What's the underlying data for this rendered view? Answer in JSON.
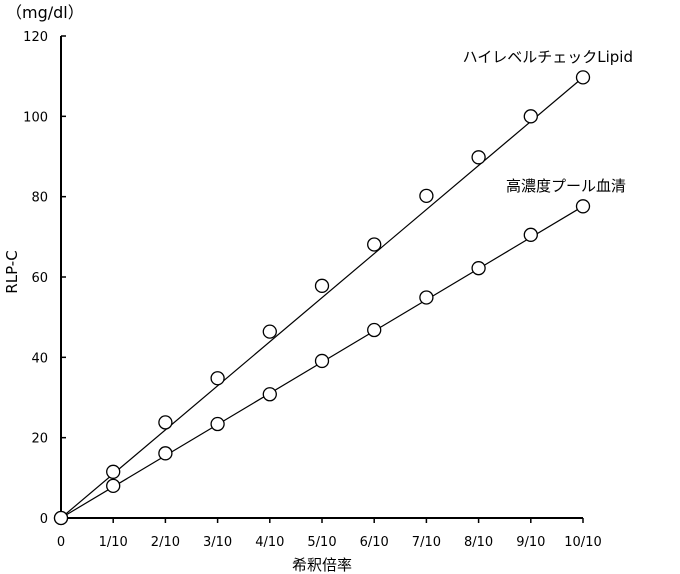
{
  "chart_data": {
    "type": "line",
    "unit_label": "（mg/dl）",
    "xlabel": "希釈倍率",
    "ylabel": "RLP-C",
    "categories": [
      "0",
      "1/10",
      "2/10",
      "3/10",
      "4/10",
      "5/10",
      "6/10",
      "7/10",
      "8/10",
      "9/10",
      "10/10"
    ],
    "y_ticks": [
      "0",
      "20",
      "40",
      "60",
      "80",
      "100",
      "120"
    ],
    "ylim": [
      0,
      120
    ],
    "grid": false,
    "series": [
      {
        "name": "ハイレベルチェックLipid",
        "values": [
          0,
          11.5,
          23.8,
          34.8,
          46.4,
          57.8,
          68.1,
          80.2,
          89.8,
          100.0,
          109.7
        ]
      },
      {
        "name": "高濃度プール血清",
        "values": [
          0,
          8.0,
          16.1,
          23.4,
          30.8,
          39.1,
          46.8,
          54.9,
          62.2,
          70.5,
          77.6
        ]
      }
    ]
  }
}
